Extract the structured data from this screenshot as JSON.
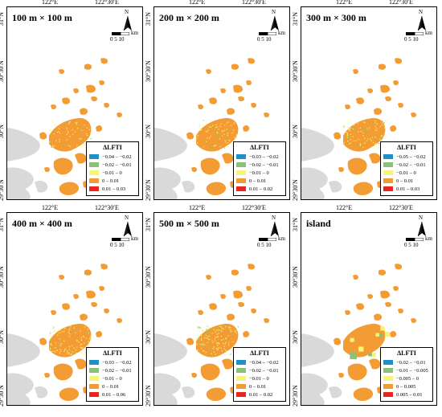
{
  "colors": {
    "water": "#ffffff",
    "mainland": "#d9d9d9",
    "islands": "#f39c34",
    "class_colors": [
      "#1f8fc8",
      "#8cbf7a",
      "#f5f57a",
      "#f39c34",
      "#e8261c"
    ]
  },
  "axes": {
    "lon_labels": [
      "122°E",
      "122°30′E"
    ],
    "lat_labels": [
      "31°N",
      "30°30′N",
      "30°N",
      "29°30′N"
    ]
  },
  "north_arrow": {
    "letter": "N",
    "icon": "north-arrow-icon"
  },
  "scale_bar": {
    "unit": "km",
    "ticks": "0  5  10"
  },
  "legend_title": "ΔLFTI",
  "panels": [
    {
      "title": "100 m × 100 m",
      "legend": [
        "−0.04 – −0.02",
        "−0.02 – −0.01",
        "−0.01 – 0",
        "0 – 0.01",
        "0.01 – 0.03"
      ]
    },
    {
      "title": "200 m × 200 m",
      "legend": [
        "−0.03 – −0.02",
        "−0.02 – −0.01",
        "−0.01 – 0",
        "0 – 0.01",
        "0.01 – 0.02"
      ]
    },
    {
      "title": "300 m × 300 m",
      "legend": [
        "−0.05 – −0.02",
        "−0.02 – −0.01",
        "−0.01 – 0",
        "0 – 0.01",
        "0.01 – 0.03"
      ]
    },
    {
      "title": "400 m × 400 m",
      "legend": [
        "−0.03 – −0.02",
        "−0.02 – −0.01",
        "−0.01 – 0",
        "0 – 0.01",
        "0.01 – 0.06"
      ]
    },
    {
      "title": "500 m × 500 m",
      "legend": [
        "−0.04 – −0.02",
        "−0.02 – −0.01",
        "−0.01 – 0",
        "0 – 0.01",
        "0.01 – 0.02"
      ]
    },
    {
      "title": "island",
      "legend": [
        "−0.02 – −0.01",
        "−0.01 – −0.005",
        "−0.005 – 0",
        "0 – 0.005",
        "0.005 – 0.01"
      ]
    }
  ]
}
